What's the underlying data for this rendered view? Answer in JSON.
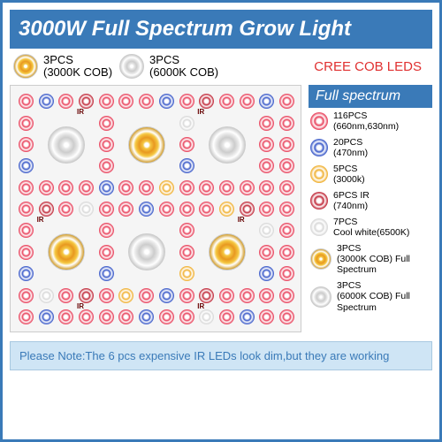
{
  "title": "3000W Full Spectrum Grow Light",
  "top_cobs": [
    {
      "label": "3PCS\n(3000K COB)",
      "style": "warm"
    },
    {
      "label": "3PCS\n(6000K COB)",
      "style": "cool"
    }
  ],
  "cree_label": "CREE COB LEDS",
  "legend": {
    "header": "Full spectrum",
    "items": [
      {
        "type": "led-red",
        "label": "116PCS\n(660nm,630nm)"
      },
      {
        "type": "led-blue",
        "label": "20PCS\n(470nm)"
      },
      {
        "type": "led-yellow",
        "label": "5PCS\n(3000k)"
      },
      {
        "type": "led-ir",
        "label": "6PCS IR\n(740nm)"
      },
      {
        "type": "led-white",
        "label": "7PCS\nCool white(6500K)"
      },
      {
        "type": "cob-warm",
        "label": "3PCS\n(3000K COB) Full\nSpectrum"
      },
      {
        "type": "cob-cool",
        "label": "3PCS\n(6000K COB) Full\nSpectrum"
      }
    ]
  },
  "note": "Please Note:The 6 pcs expensive IR LEDs look dim,but they are working",
  "colors": {
    "brand_blue": "#3a7ab8",
    "cree_red": "#e03030",
    "note_bg": "#cfe5f5",
    "note_border": "#a8c8e0",
    "panel_bg": "#f5f5f5",
    "panel_border": "#cccccc",
    "led_red": "#e8405a",
    "led_blue": "#3858c8",
    "led_yellow": "#f0b030",
    "led_white": "#d8d8d8",
    "led_ir": "#c02838"
  },
  "panel": {
    "cols": 14,
    "rows": 11,
    "led_size": 17,
    "cob_positions": [
      {
        "row": 3,
        "col": 3,
        "style": "cool"
      },
      {
        "row": 3,
        "col": 7,
        "style": "warm"
      },
      {
        "row": 3,
        "col": 11,
        "style": "cool"
      },
      {
        "row": 8,
        "col": 3,
        "style": "warm"
      },
      {
        "row": 8,
        "col": 7,
        "style": "cool"
      },
      {
        "row": 8,
        "col": 11,
        "style": "warm"
      }
    ],
    "ir_cells": [
      "1,4",
      "1,10",
      "6,2",
      "6,12",
      "10,4",
      "10,10"
    ],
    "blue_cells": [
      "1,2",
      "1,8",
      "1,13",
      "2,6",
      "2,11",
      "4,1",
      "4,9",
      "4,12",
      "5,5",
      "6,7",
      "7,2",
      "7,10",
      "8,6",
      "9,1",
      "9,5",
      "9,13",
      "10,8",
      "11,2",
      "11,7",
      "11,12"
    ],
    "yellow_cells": [
      "2,4",
      "5,8",
      "6,11",
      "9,9",
      "10,6"
    ],
    "white_cells": [
      "2,9",
      "4,6",
      "6,4",
      "7,13",
      "9,7",
      "10,2",
      "11,10"
    ]
  }
}
